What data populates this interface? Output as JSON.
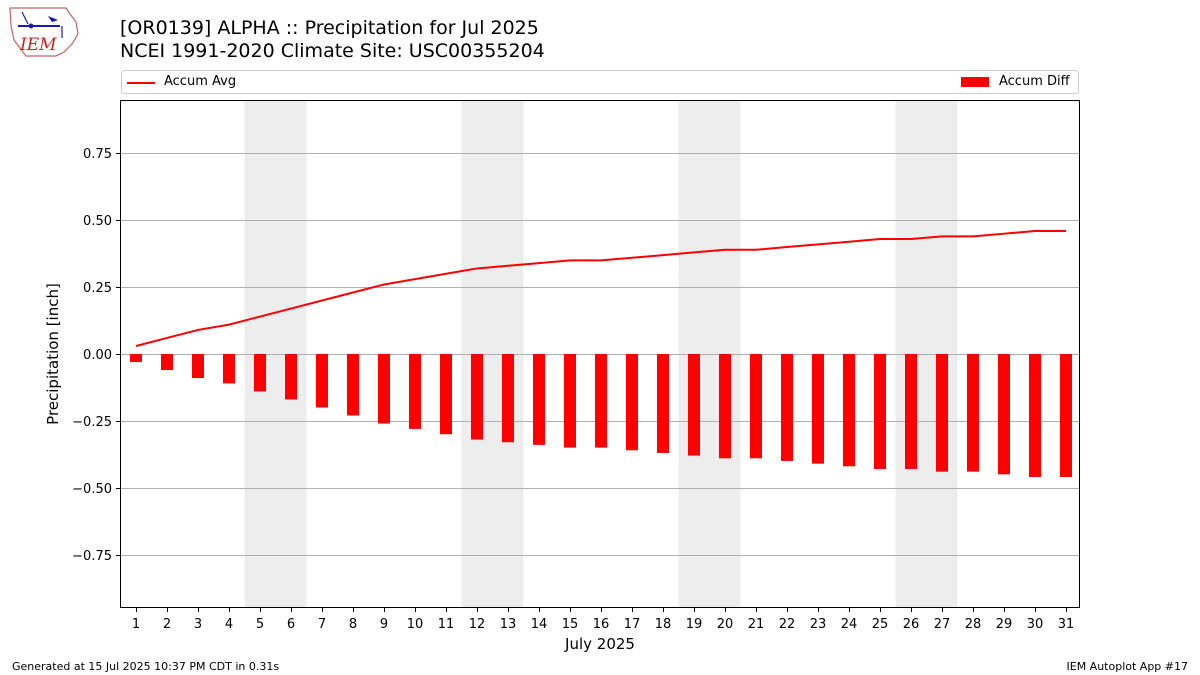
{
  "header": {
    "title_line1": "[OR0139] ALPHA :: Precipitation for Jul 2025",
    "title_line2": "NCEI 1991-2020 Climate Site: USC00355204",
    "logo_text": "IEM"
  },
  "footer": {
    "generated": "Generated at 15 Jul 2025 10:37 PM CDT in 0.31s",
    "app": "IEM Autoplot App #17"
  },
  "colors": {
    "series": "#ff0000",
    "weekend_shade": "#ededed",
    "grid": "#b0b0b0"
  },
  "chart_data": {
    "type": "bar",
    "xlabel": "July 2025",
    "ylabel": "Precipitation [inch]",
    "ylim": [
      -0.95,
      0.95
    ],
    "yticks": [
      -0.75,
      -0.5,
      -0.25,
      0.0,
      0.25,
      0.5,
      0.75
    ],
    "ytick_labels": [
      "−0.75",
      "−0.50",
      "−0.25",
      "0.00",
      "0.25",
      "0.50",
      "0.75"
    ],
    "grid": "horizontal",
    "legend_placement": "top",
    "categories": [
      "1",
      "2",
      "3",
      "4",
      "5",
      "6",
      "7",
      "8",
      "9",
      "10",
      "11",
      "12",
      "13",
      "14",
      "15",
      "16",
      "17",
      "18",
      "19",
      "20",
      "21",
      "22",
      "23",
      "24",
      "25",
      "26",
      "27",
      "28",
      "29",
      "30",
      "31"
    ],
    "weekend_days": [
      5,
      6,
      12,
      13,
      19,
      20,
      26,
      27
    ],
    "series": [
      {
        "name": "Accum Avg",
        "type": "line",
        "values": [
          0.03,
          0.06,
          0.09,
          0.11,
          0.14,
          0.17,
          0.2,
          0.23,
          0.26,
          0.28,
          0.3,
          0.32,
          0.33,
          0.34,
          0.35,
          0.35,
          0.36,
          0.37,
          0.38,
          0.39,
          0.39,
          0.4,
          0.41,
          0.42,
          0.43,
          0.43,
          0.44,
          0.44,
          0.45,
          0.46,
          0.46
        ]
      },
      {
        "name": "Accum Diff",
        "type": "bar",
        "values": [
          -0.03,
          -0.06,
          -0.09,
          -0.11,
          -0.14,
          -0.17,
          -0.2,
          -0.23,
          -0.26,
          -0.28,
          -0.3,
          -0.32,
          -0.33,
          -0.34,
          -0.35,
          -0.35,
          -0.36,
          -0.37,
          -0.38,
          -0.39,
          -0.39,
          -0.4,
          -0.41,
          -0.42,
          -0.43,
          -0.43,
          -0.44,
          -0.44,
          -0.45,
          -0.46,
          -0.46
        ]
      }
    ]
  }
}
